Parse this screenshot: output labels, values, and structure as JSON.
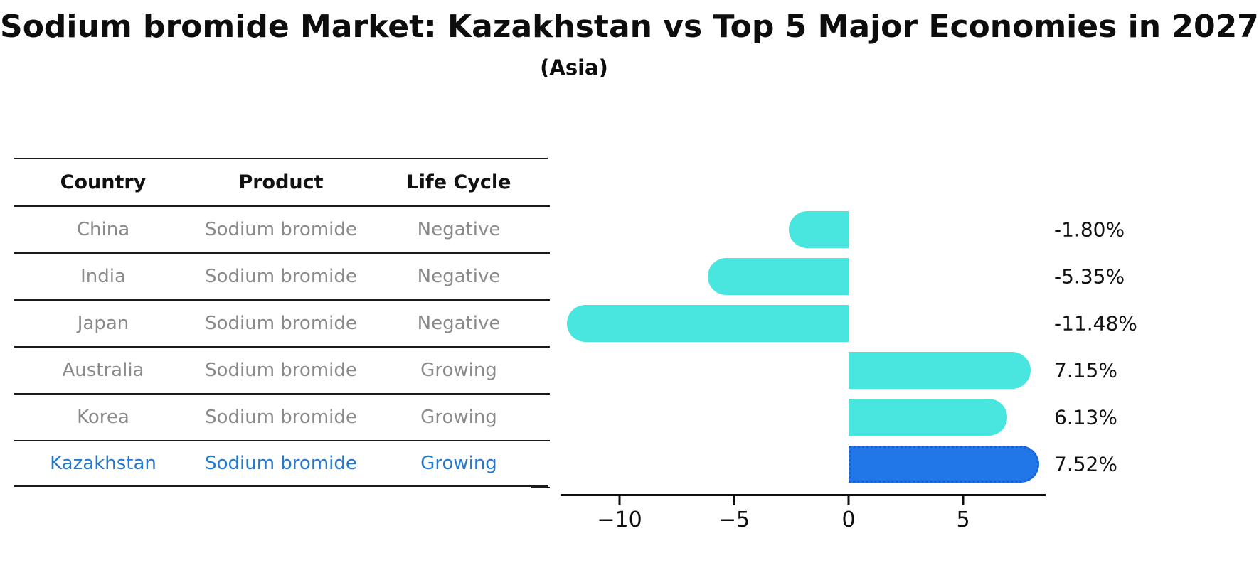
{
  "header": {
    "title": "Sodium bromide Market: Kazakhstan vs Top 5 Major Economies in 2027",
    "subtitle": "(Asia)"
  },
  "table": {
    "columns": [
      "Country",
      "Product",
      "Life Cycle"
    ],
    "rows": [
      {
        "country": "China",
        "product": "Sodium bromide",
        "life_cycle": "Negative",
        "highlight": false
      },
      {
        "country": "India",
        "product": "Sodium bromide",
        "life_cycle": "Negative",
        "highlight": false
      },
      {
        "country": "Japan",
        "product": "Sodium bromide",
        "life_cycle": "Negative",
        "highlight": false
      },
      {
        "country": "Australia",
        "product": "Sodium bromide",
        "life_cycle": "Growing",
        "highlight": false
      },
      {
        "country": "Korea",
        "product": "Sodium bromide",
        "life_cycle": "Growing",
        "highlight": false
      },
      {
        "country": "Kazakhstan",
        "product": "Sodium bromide",
        "life_cycle": "Growing",
        "highlight": true
      }
    ]
  },
  "chart_data": {
    "type": "bar",
    "orientation": "horizontal",
    "title": "Sodium bromide Market: Kazakhstan vs Top 5 Major Economies in 2027",
    "subtitle": "(Asia)",
    "categories": [
      "China",
      "India",
      "Japan",
      "Australia",
      "Korea",
      "Kazakhstan"
    ],
    "values": [
      -1.8,
      -5.35,
      -11.48,
      7.15,
      6.13,
      7.52
    ],
    "value_labels": [
      "-1.80%",
      "-5.35%",
      "-11.48%",
      "7.15%",
      "6.13%",
      "7.52%"
    ],
    "highlight_category": "Kazakhstan",
    "xlabel": "",
    "ylabel": "",
    "xlim": [
      -12.6,
      8.6
    ],
    "xticks": [
      {
        "value": -10,
        "label": "−10"
      },
      {
        "value": -5,
        "label": "−5"
      },
      {
        "value": 0,
        "label": "0"
      },
      {
        "value": 5,
        "label": "5"
      }
    ],
    "grid": false,
    "legend": "none",
    "value_label_position": "outside-right",
    "bar_color": "#48E6DF",
    "highlight_color": "#2176E8",
    "highlight_border_color": "#1a5fd0"
  },
  "colors": {
    "text": "#0d0d0d",
    "table_text": "#8a8a8a",
    "highlight_text": "#2478ce",
    "rule": "#1a1a1a"
  }
}
